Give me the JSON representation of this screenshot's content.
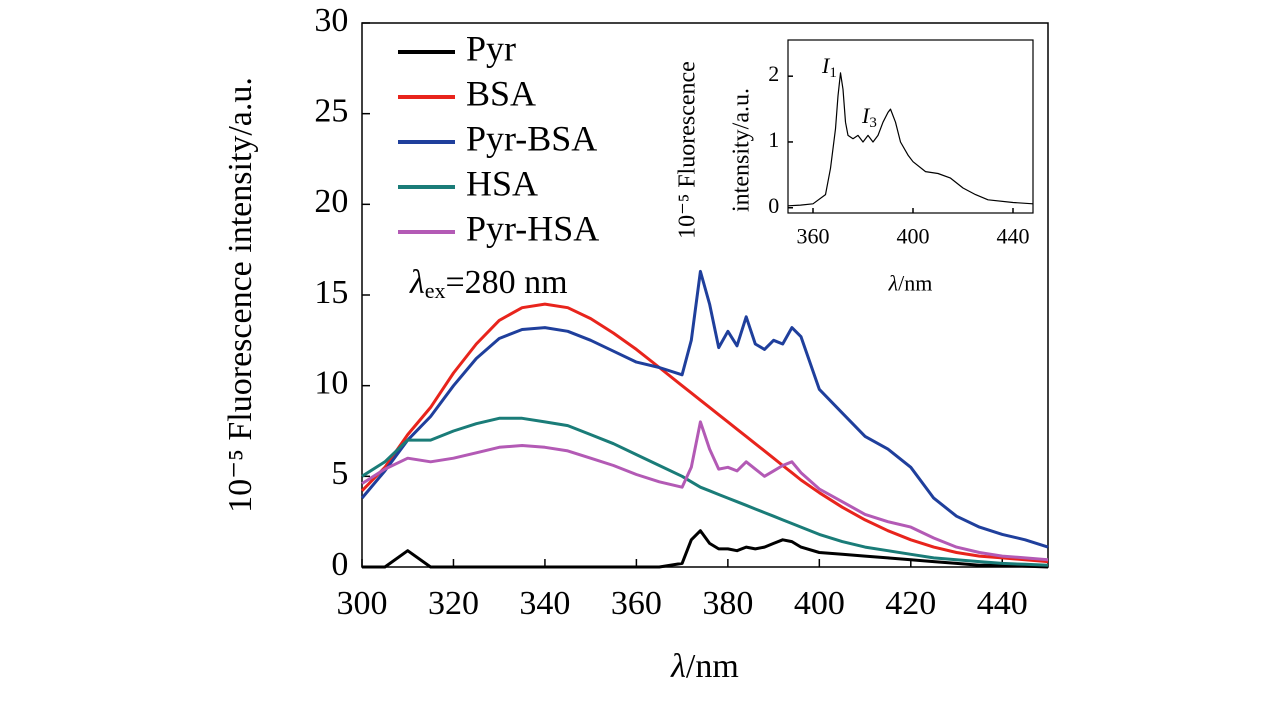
{
  "chart_data": [
    {
      "type": "line",
      "y_label": "10⁻⁵ Fluorescence intensity/a.u.",
      "x_label": {
        "symbol": "λ",
        "unit": "/nm"
      },
      "annotation": {
        "symbol": "λ",
        "subscript": "ex",
        "text": "=280 nm"
      },
      "x": [
        300,
        305,
        310,
        315,
        320,
        325,
        330,
        335,
        340,
        345,
        350,
        355,
        360,
        365,
        370,
        372,
        374,
        376,
        378,
        380,
        382,
        384,
        386,
        388,
        390,
        392,
        394,
        396,
        400,
        405,
        410,
        415,
        420,
        425,
        430,
        435,
        440,
        445,
        450
      ],
      "series": [
        {
          "name": "Pyr",
          "color": "#000000",
          "values": [
            0,
            0,
            0.9,
            0,
            0,
            0,
            0,
            0,
            0,
            0,
            0,
            0,
            0,
            0,
            0.2,
            1.5,
            2.0,
            1.3,
            1.0,
            1.0,
            0.9,
            1.1,
            1.0,
            1.1,
            1.3,
            1.5,
            1.4,
            1.1,
            0.8,
            0.7,
            0.6,
            0.5,
            0.4,
            0.3,
            0.2,
            0.1,
            0.1,
            0.05,
            0
          ]
        },
        {
          "name": "BSA",
          "color": "#e8241c",
          "values": [
            4.2,
            5.5,
            7.3,
            8.8,
            10.7,
            12.3,
            13.6,
            14.3,
            14.5,
            14.3,
            13.7,
            12.9,
            12.0,
            11.0,
            10.0,
            9.6,
            9.2,
            8.8,
            8.4,
            8.0,
            7.6,
            7.2,
            6.8,
            6.4,
            6.0,
            5.6,
            5.2,
            4.8,
            4.1,
            3.3,
            2.6,
            2.0,
            1.5,
            1.1,
            0.8,
            0.6,
            0.5,
            0.4,
            0.3
          ]
        },
        {
          "name": "Pyr-BSA",
          "color": "#1f3f9c",
          "values": [
            3.8,
            5.3,
            7.0,
            8.3,
            10.0,
            11.5,
            12.6,
            13.1,
            13.2,
            13.0,
            12.5,
            11.9,
            11.3,
            11.0,
            10.6,
            12.5,
            16.3,
            14.5,
            12.1,
            13.0,
            12.2,
            13.8,
            12.3,
            12.0,
            12.5,
            12.3,
            13.2,
            12.7,
            9.8,
            8.5,
            7.2,
            6.5,
            5.5,
            3.8,
            2.8,
            2.2,
            1.8,
            1.5,
            1.1
          ]
        },
        {
          "name": "HSA",
          "color": "#1a7c78",
          "values": [
            5.0,
            5.8,
            7.0,
            7.0,
            7.5,
            7.9,
            8.2,
            8.2,
            8.0,
            7.8,
            7.3,
            6.8,
            6.2,
            5.6,
            5.0,
            4.7,
            4.4,
            4.2,
            4.0,
            3.8,
            3.6,
            3.4,
            3.2,
            3.0,
            2.8,
            2.6,
            2.4,
            2.2,
            1.8,
            1.4,
            1.1,
            0.9,
            0.7,
            0.5,
            0.4,
            0.3,
            0.2,
            0.15,
            0.1
          ]
        },
        {
          "name": "Pyr-HSA",
          "color": "#b35ab5",
          "values": [
            4.6,
            5.4,
            6.0,
            5.8,
            6.0,
            6.3,
            6.6,
            6.7,
            6.6,
            6.4,
            6.0,
            5.6,
            5.1,
            4.7,
            4.4,
            5.5,
            8.0,
            6.5,
            5.4,
            5.5,
            5.3,
            5.8,
            5.4,
            5.0,
            5.3,
            5.6,
            5.8,
            5.2,
            4.3,
            3.6,
            2.9,
            2.5,
            2.2,
            1.6,
            1.1,
            0.8,
            0.6,
            0.5,
            0.4
          ]
        }
      ],
      "xlim": [
        300,
        450
      ],
      "xticks": [
        300,
        320,
        340,
        360,
        380,
        400,
        420,
        440
      ],
      "ylim": [
        0,
        30
      ],
      "yticks": [
        0,
        5,
        10,
        15,
        20,
        25,
        30
      ],
      "grid": false,
      "legend": "upper left"
    },
    {
      "type": "line",
      "y_label": [
        "10⁻⁵ Fluorescence",
        "intensity/a.u."
      ],
      "x_label": {
        "symbol": "λ",
        "unit": "/nm"
      },
      "annotations": [
        {
          "symbol": "I",
          "subscript": "1"
        },
        {
          "symbol": "I",
          "subscript": "3"
        }
      ],
      "x": [
        350,
        355,
        360,
        365,
        367,
        369,
        370,
        371,
        372,
        373,
        374,
        376,
        378,
        380,
        382,
        384,
        386,
        388,
        390,
        391,
        393,
        395,
        398,
        400,
        405,
        410,
        415,
        420,
        425,
        430,
        440,
        448
      ],
      "series": [
        {
          "color": "#000000",
          "values": [
            0.03,
            0.04,
            0.06,
            0.2,
            0.6,
            1.2,
            1.7,
            2.05,
            1.8,
            1.3,
            1.1,
            1.05,
            1.1,
            1.0,
            1.1,
            1.0,
            1.1,
            1.3,
            1.45,
            1.5,
            1.3,
            1.0,
            0.8,
            0.7,
            0.55,
            0.52,
            0.45,
            0.3,
            0.2,
            0.12,
            0.08,
            0.06
          ]
        }
      ],
      "xlim": [
        350,
        448
      ],
      "xticks": [
        360,
        400,
        440
      ],
      "ylim": [
        -0.08,
        2.55
      ],
      "yticks": [
        0,
        1,
        2
      ],
      "grid": false
    }
  ]
}
